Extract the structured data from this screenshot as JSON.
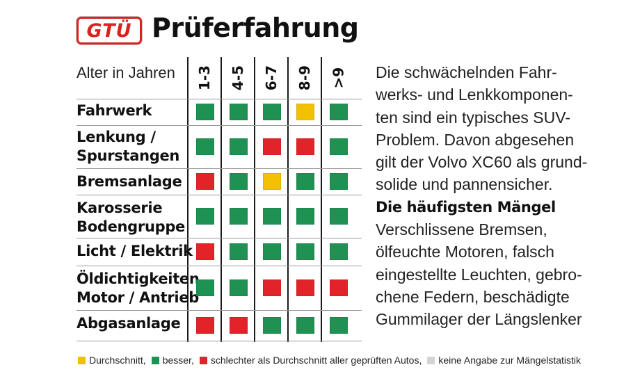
{
  "header": {
    "logo_text": "GTÜ",
    "title": "Prüferfahrung"
  },
  "table": {
    "age_label": "Alter in Jahren",
    "columns": [
      "1-3",
      "4-5",
      "6-7",
      "8-9",
      ">9"
    ],
    "rows": [
      {
        "label_lines": [
          "Fahrwerk"
        ],
        "ratings": [
          "besser",
          "besser",
          "besser",
          "Durchschnitt",
          "besser"
        ]
      },
      {
        "label_lines": [
          "Lenkung /",
          "Spurstangen"
        ],
        "ratings": [
          "besser",
          "besser",
          "schlechter",
          "schlechter",
          "besser"
        ]
      },
      {
        "label_lines": [
          "Bremsanlage"
        ],
        "ratings": [
          "schlechter",
          "besser",
          "Durchschnitt",
          "besser",
          "besser"
        ]
      },
      {
        "label_lines": [
          "Karosserie",
          "Bodengruppe"
        ],
        "ratings": [
          "besser",
          "besser",
          "besser",
          "besser",
          "besser"
        ]
      },
      {
        "label_lines": [
          "Licht / Elektrik"
        ],
        "ratings": [
          "schlechter",
          "besser",
          "besser",
          "besser",
          "besser"
        ]
      },
      {
        "label_lines": [
          "Öldichtigkeiten",
          "Motor / Antrieb"
        ],
        "ratings": [
          "besser",
          "besser",
          "schlechter",
          "schlechter",
          "schlechter"
        ]
      },
      {
        "label_lines": [
          "Abgasanlage"
        ],
        "ratings": [
          "schlechter",
          "schlechter",
          "besser",
          "besser",
          "besser"
        ]
      }
    ]
  },
  "colors": {
    "Durchschnitt": "#f2c200",
    "besser": "#1f9152",
    "schlechter": "#e2232a",
    "keine_angabe": "#d4d4d4"
  },
  "description": {
    "lines": [
      "Die schwächelnden Fahr-",
      "werks- und Lenkkomponen-",
      "ten sind ein typisches SUV-",
      "Problem. Davon abgesehen",
      "gilt der Volvo XC60 als grund-",
      "solide und pannensicher."
    ],
    "subheading": "Die häufigsten Mängel",
    "defects_lines": [
      "Verschlissene Bremsen,",
      "ölfeuchte Motoren, falsch",
      "eingestellte Leuchten, gebro-",
      "chene Federn, beschädigte",
      "Gummilager der Längslenker"
    ]
  },
  "legend": {
    "durchschnitt": "Durchschnitt,",
    "besser": "besser,",
    "schlechter": "schlechter als Durchschnitt aller geprüften Autos,",
    "keine_angabe": "keine Angabe zur Mängelstatistik"
  }
}
